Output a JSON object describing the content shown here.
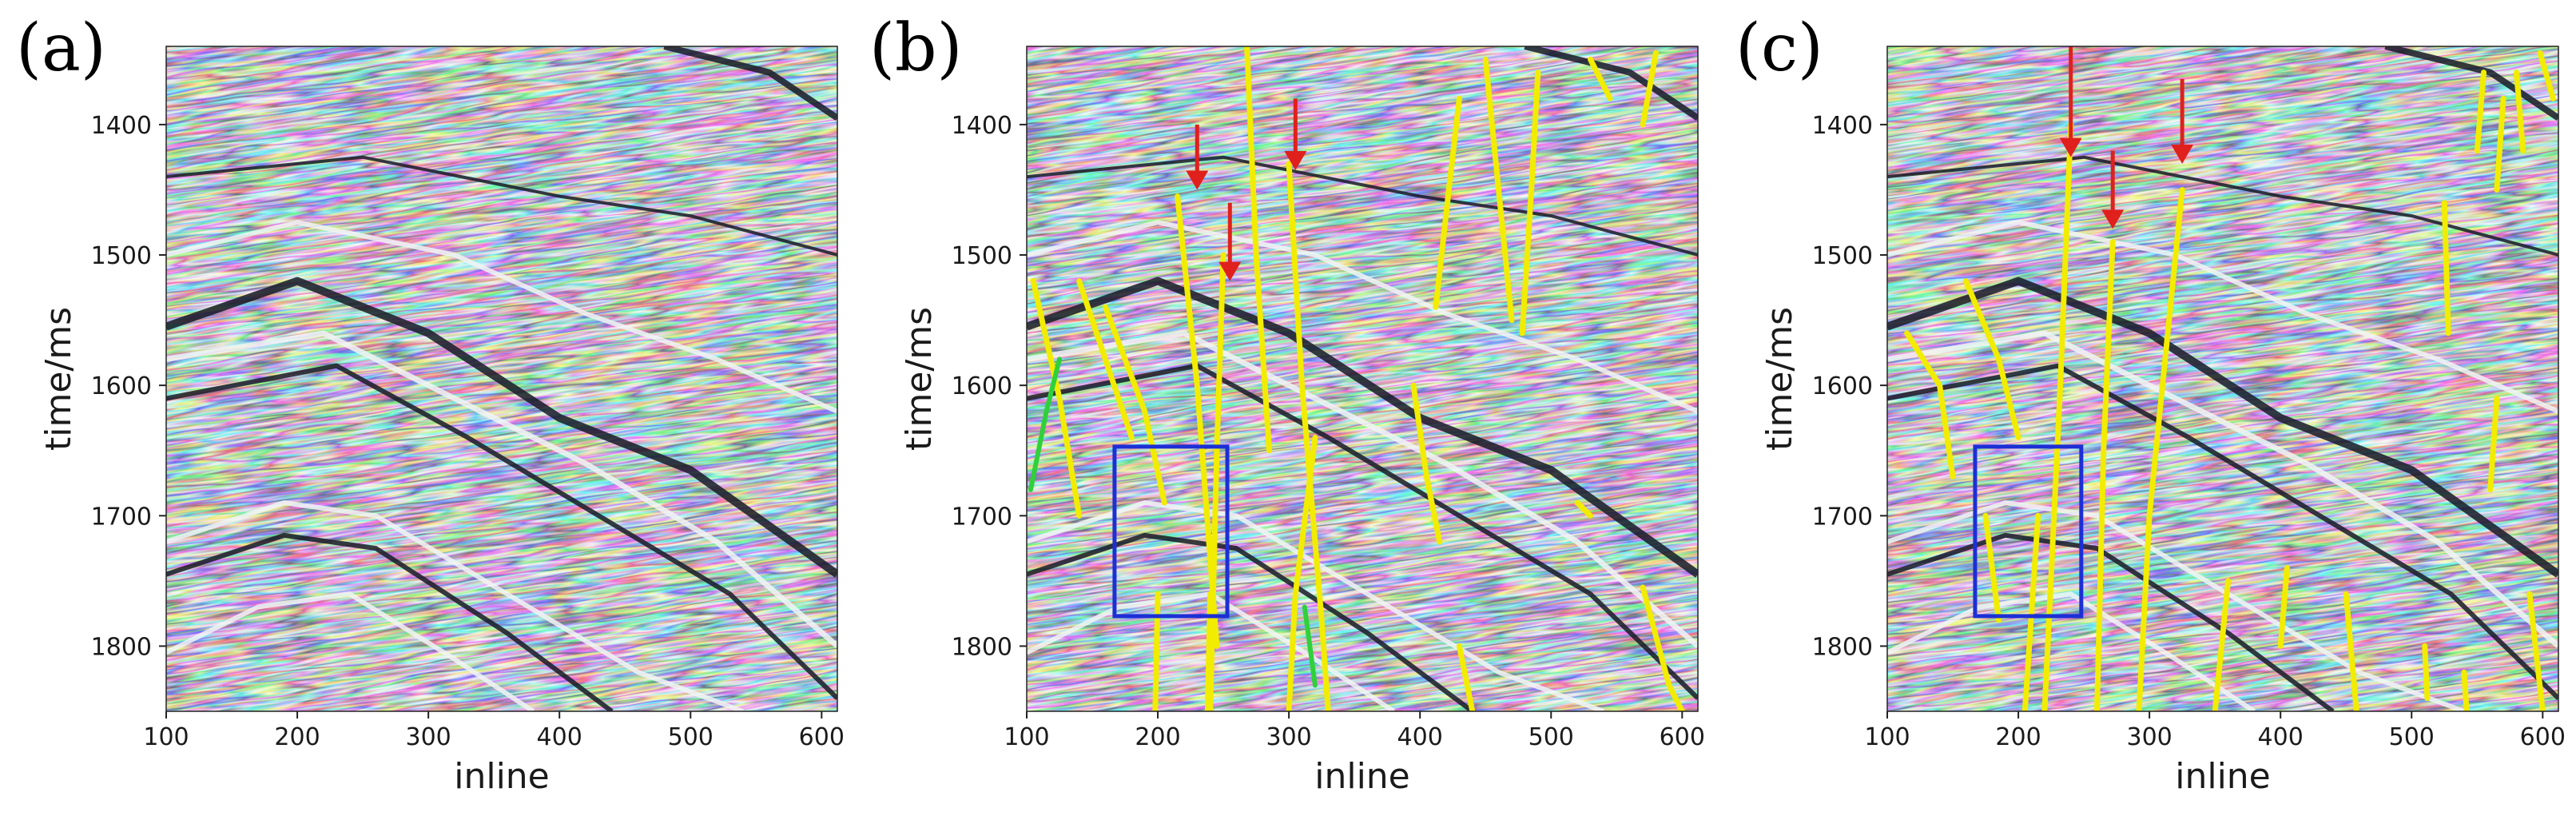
{
  "figure": {
    "panels": [
      {
        "letter": "(a)",
        "xlabel": "inline",
        "ylabel": "time/ms",
        "xticks": [
          "100",
          "200",
          "300",
          "400",
          "500",
          "600"
        ],
        "yticks": [
          "1400",
          "1500",
          "1600",
          "1700",
          "1800"
        ],
        "xlim": [
          100,
          612
        ],
        "ylim": [
          1340,
          1850
        ],
        "faults": [],
        "arrows": [],
        "green_marks": [],
        "box": null
      },
      {
        "letter": "(b)",
        "xlabel": "inline",
        "ylabel": "time/ms",
        "xticks": [
          "100",
          "200",
          "300",
          "400",
          "500",
          "600"
        ],
        "yticks": [
          "1400",
          "1500",
          "1600",
          "1700",
          "1800"
        ],
        "xlim": [
          100,
          612
        ],
        "ylim": [
          1340,
          1850
        ],
        "faults": [
          [
            [
              105,
              1520
            ],
            [
              125,
              1610
            ],
            [
              140,
              1700
            ]
          ],
          [
            [
              140,
              1520
            ],
            [
              160,
              1580
            ],
            [
              180,
              1640
            ]
          ],
          [
            [
              160,
              1540
            ],
            [
              190,
              1620
            ],
            [
              205,
              1690
            ]
          ],
          [
            [
              215,
              1455
            ],
            [
              230,
              1600
            ],
            [
              245,
              1800
            ]
          ],
          [
            [
              250,
              1500
            ],
            [
              245,
              1650
            ],
            [
              240,
              1850
            ]
          ],
          [
            [
              268,
              1340
            ],
            [
              275,
              1500
            ],
            [
              285,
              1650
            ]
          ],
          [
            [
              300,
              1430
            ],
            [
              310,
              1600
            ],
            [
              325,
              1780
            ],
            [
              330,
              1850
            ]
          ],
          [
            [
              320,
              1640
            ],
            [
              305,
              1760
            ],
            [
              300,
              1850
            ]
          ],
          [
            [
              395,
              1600
            ],
            [
              405,
              1670
            ],
            [
              415,
              1720
            ]
          ],
          [
            [
              430,
              1380
            ],
            [
              422,
              1450
            ],
            [
              412,
              1540
            ]
          ],
          [
            [
              450,
              1350
            ],
            [
              460,
              1450
            ],
            [
              470,
              1550
            ]
          ],
          [
            [
              490,
              1360
            ],
            [
              485,
              1450
            ],
            [
              478,
              1560
            ]
          ],
          [
            [
              530,
              1350
            ],
            [
              545,
              1380
            ]
          ],
          [
            [
              580,
              1345
            ],
            [
              570,
              1400
            ]
          ],
          [
            [
              520,
              1690
            ],
            [
              530,
              1700
            ]
          ],
          [
            [
              570,
              1755
            ],
            [
              590,
              1830
            ],
            [
              600,
              1850
            ]
          ],
          [
            [
              200,
              1760
            ],
            [
              198,
              1850
            ]
          ],
          [
            [
              240,
              1760
            ],
            [
              238,
              1850
            ]
          ],
          [
            [
              430,
              1800
            ],
            [
              440,
              1850
            ]
          ]
        ],
        "arrows": [
          [
            230,
            1400,
            1450
          ],
          [
            255,
            1460,
            1520
          ],
          [
            305,
            1380,
            1435
          ]
        ],
        "green_marks": [
          [
            [
              103,
              1680
            ],
            [
              115,
              1620
            ],
            [
              125,
              1580
            ]
          ],
          [
            [
              312,
              1770
            ],
            [
              320,
              1830
            ]
          ]
        ],
        "box": {
          "x0": 167,
          "x1": 253,
          "y0": 1647,
          "y1": 1777
        }
      },
      {
        "letter": "(c)",
        "xlabel": "inline",
        "ylabel": "time/ms",
        "xticks": [
          "100",
          "200",
          "300",
          "400",
          "500",
          "600"
        ],
        "yticks": [
          "1400",
          "1500",
          "1600",
          "1700",
          "1800"
        ],
        "xlim": [
          100,
          612
        ],
        "ylim": [
          1340,
          1850
        ],
        "faults": [
          [
            [
              115,
              1560
            ],
            [
              140,
              1600
            ],
            [
              150,
              1670
            ]
          ],
          [
            [
              160,
              1520
            ],
            [
              185,
              1580
            ],
            [
              200,
              1640
            ]
          ],
          [
            [
              220,
              1850
            ],
            [
              232,
              1600
            ],
            [
              240,
              1400
            ]
          ],
          [
            [
              272,
              1490
            ],
            [
              265,
              1650
            ],
            [
              260,
              1850
            ]
          ],
          [
            [
              325,
              1450
            ],
            [
              310,
              1600
            ],
            [
              300,
              1700
            ],
            [
              292,
              1850
            ]
          ],
          [
            [
              175,
              1700
            ],
            [
              185,
              1780
            ]
          ],
          [
            [
              215,
              1700
            ],
            [
              205,
              1850
            ]
          ],
          [
            [
              360,
              1750
            ],
            [
              350,
              1850
            ]
          ],
          [
            [
              405,
              1740
            ],
            [
              400,
              1800
            ]
          ],
          [
            [
              450,
              1760
            ],
            [
              458,
              1850
            ]
          ],
          [
            [
              555,
              1360
            ],
            [
              550,
              1420
            ]
          ],
          [
            [
              570,
              1380
            ],
            [
              565,
              1450
            ]
          ],
          [
            [
              598,
              1345
            ],
            [
              608,
              1380
            ]
          ],
          [
            [
              580,
              1360
            ],
            [
              585,
              1420
            ]
          ],
          [
            [
              525,
              1460
            ],
            [
              528,
              1560
            ]
          ],
          [
            [
              565,
              1610
            ],
            [
              560,
              1680
            ]
          ],
          [
            [
              590,
              1760
            ],
            [
              600,
              1850
            ]
          ],
          [
            [
              540,
              1820
            ],
            [
              542,
              1850
            ]
          ],
          [
            [
              510,
              1800
            ],
            [
              512,
              1840
            ]
          ]
        ],
        "arrows": [
          [
            240,
            1340,
            1425
          ],
          [
            272,
            1420,
            1480
          ],
          [
            325,
            1365,
            1430
          ]
        ],
        "green_marks": [],
        "box": {
          "x0": 167,
          "x1": 248,
          "y0": 1647,
          "y1": 1777
        }
      }
    ],
    "colors": {
      "fault": "#f2ec00",
      "arrow": "#e0201c",
      "box": "#1c2fd6",
      "green": "#2fd13a",
      "seismic_dark": "#161a26",
      "seismic_mid": "#6b7584",
      "seismic_light": "#f1f5f5"
    }
  }
}
